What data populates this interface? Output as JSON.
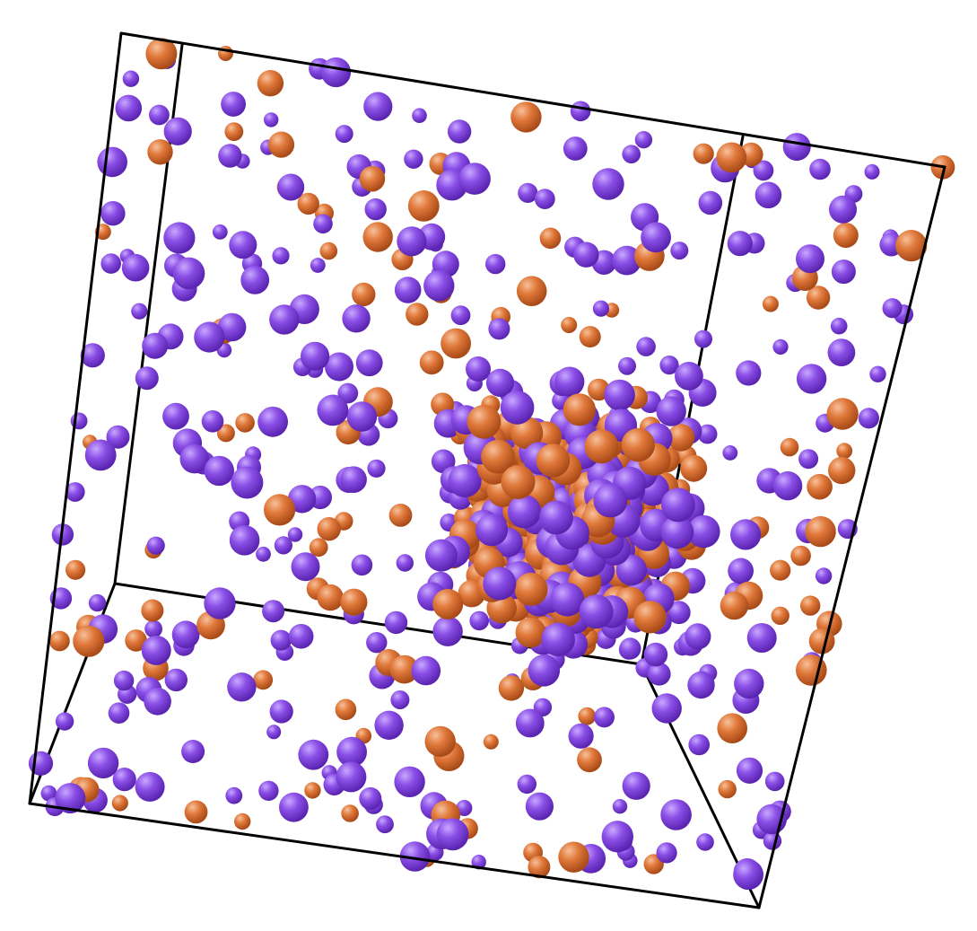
{
  "colors": {
    "background": "#ffffff",
    "box_edge": "#000000",
    "species_a": "#8a4ee6",
    "species_a_highlight": "#c9a8ff",
    "species_a_shadow": "#5a24b0",
    "species_b": "#e0783a",
    "species_b_highlight": "#f7c09a",
    "species_b_shadow": "#a84a18"
  },
  "particle_species": [
    "species_a",
    "species_b"
  ]
}
